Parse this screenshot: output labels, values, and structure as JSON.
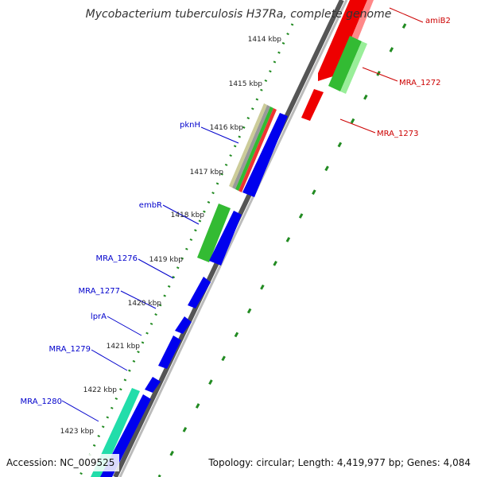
{
  "title": "Mycobacterium tuberculosis H37Ra, complete genome",
  "footer": {
    "accession": "Accession: NC_009525",
    "summary": "Topology: circular; Length: 4,419,977 bp; Genes: 4,084"
  },
  "ticks": [
    "1414 kbp",
    "1415 kbp",
    "1416 kbp",
    "1417 kbp",
    "1418 kbp",
    "1419 kbp",
    "1420 kbp",
    "1421 kbp",
    "1422 kbp",
    "1423 kbp"
  ],
  "colors": {
    "forward_label": "#0000cc",
    "reverse_label": "#cc0000",
    "forward_cds": "#0000ee",
    "reverse_cds": "#ee0000",
    "gene_bar": "#33bb33",
    "gene_bar_alt": "#22ddaa",
    "backbone": "#888888",
    "ruler_dots": "#228b22"
  },
  "forward_genes": [
    "pknH",
    "embR",
    "MRA_1276",
    "MRA_1277",
    "lprA",
    "MRA_1279",
    "MRA_1280"
  ],
  "reverse_genes": [
    "amiB2",
    "MRA_1272",
    "MRA_1273"
  ]
}
